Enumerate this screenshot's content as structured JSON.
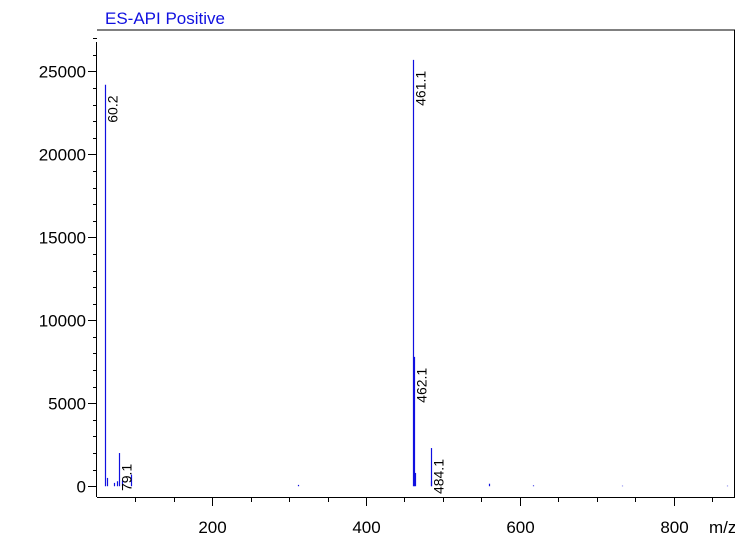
{
  "chart_data": {
    "type": "bar",
    "title": "ES-API Positive",
    "xlabel": "m/z",
    "ylabel": "",
    "xlim": [
      50,
      880
    ],
    "ylim": [
      -650,
      27500
    ],
    "grid": false,
    "legend": "none",
    "colors": {
      "series": "#1010e0",
      "axis": "#000000",
      "title": "#1010e0",
      "text": "#000000"
    },
    "x_ticks": [
      {
        "value": 200,
        "label": "200"
      },
      {
        "value": 400,
        "label": "400"
      },
      {
        "value": 600,
        "label": "600"
      },
      {
        "value": 800,
        "label": "800"
      }
    ],
    "x_minor_ticks": [
      100,
      150,
      250,
      300,
      350,
      450,
      500,
      550,
      650,
      700,
      750,
      850
    ],
    "y_ticks": [
      {
        "value": 0,
        "label": "0"
      },
      {
        "value": 5000,
        "label": "5000"
      },
      {
        "value": 10000,
        "label": "10000"
      },
      {
        "value": 15000,
        "label": "15000"
      },
      {
        "value": 20000,
        "label": "20000"
      },
      {
        "value": 25000,
        "label": "25000"
      }
    ],
    "y_minor_step": 1000,
    "series": [
      {
        "peaks": [
          {
            "x": 60.2,
            "y": 24200,
            "label": "60.2"
          },
          {
            "x": 63.5,
            "y": 500
          },
          {
            "x": 72.0,
            "y": 200
          },
          {
            "x": 76.0,
            "y": 300
          },
          {
            "x": 79.1,
            "y": 2000,
            "label": "79.1"
          },
          {
            "x": 83.0,
            "y": 350
          },
          {
            "x": 94.0,
            "y": 700
          },
          {
            "x": 311.0,
            "y": 80
          },
          {
            "x": 461.1,
            "y": 25700,
            "label": "461.1"
          },
          {
            "x": 462.1,
            "y": 7800,
            "label": "462.1"
          },
          {
            "x": 463.1,
            "y": 800
          },
          {
            "x": 484.1,
            "y": 2300,
            "label": "484.1"
          },
          {
            "x": 485.1,
            "y": 300
          },
          {
            "x": 560.0,
            "y": 150
          },
          {
            "x": 617.0,
            "y": 50
          },
          {
            "x": 733.0,
            "y": 30
          },
          {
            "x": 869.0,
            "y": 30
          }
        ]
      }
    ]
  }
}
